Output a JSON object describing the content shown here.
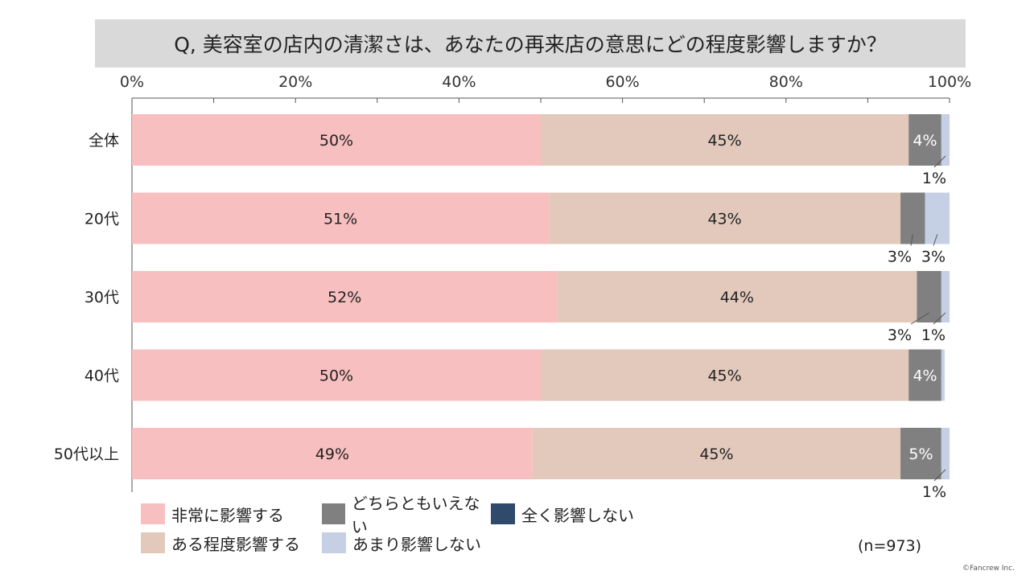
{
  "chart_data": {
    "type": "bar",
    "orientation": "horizontal",
    "stacked": true,
    "title": "Q, 美容室の店内の清潔さは、あなたの再来店の意思にどの程度影響しますか？",
    "xlim": [
      0,
      100
    ],
    "x_ticks": [
      "0%",
      "20%",
      "40%",
      "60%",
      "80%",
      "100%"
    ],
    "categories": [
      "全体",
      "20代",
      "30代",
      "40代",
      "50代以上"
    ],
    "series": [
      {
        "name": "非常に影響する",
        "color": "#f8bfc0",
        "values": [
          50,
          51,
          52,
          50,
          49
        ],
        "labels": [
          "50%",
          "51%",
          "52%",
          "50%",
          "49%"
        ]
      },
      {
        "name": "ある程度影響する",
        "color": "#e2c9bc",
        "values": [
          45,
          43,
          44,
          45,
          45
        ],
        "labels": [
          "45%",
          "43%",
          "44%",
          "45%",
          "45%"
        ]
      },
      {
        "name": "どちらともいえない",
        "color": "#808080",
        "values": [
          4,
          3,
          3,
          4,
          5
        ],
        "labels": [
          "4%",
          "3%",
          "3%",
          "4%",
          "5%"
        ]
      },
      {
        "name": "全く影響しない",
        "color": "#2f4a6b",
        "values": [
          0,
          0,
          0,
          0,
          0
        ],
        "labels": [
          "",
          "",
          "",
          "",
          ""
        ]
      },
      {
        "name": "あまり影響しない",
        "color": "#c5d0e4",
        "values": [
          1,
          3,
          1,
          0.4,
          1
        ],
        "labels": [
          "1%",
          "3%",
          "1%",
          "",
          "1%"
        ]
      }
    ],
    "legend_position": "bottom",
    "grid": false
  },
  "footer": {
    "n_label": "(n=973)",
    "copyright": "©Fancrew Inc."
  }
}
